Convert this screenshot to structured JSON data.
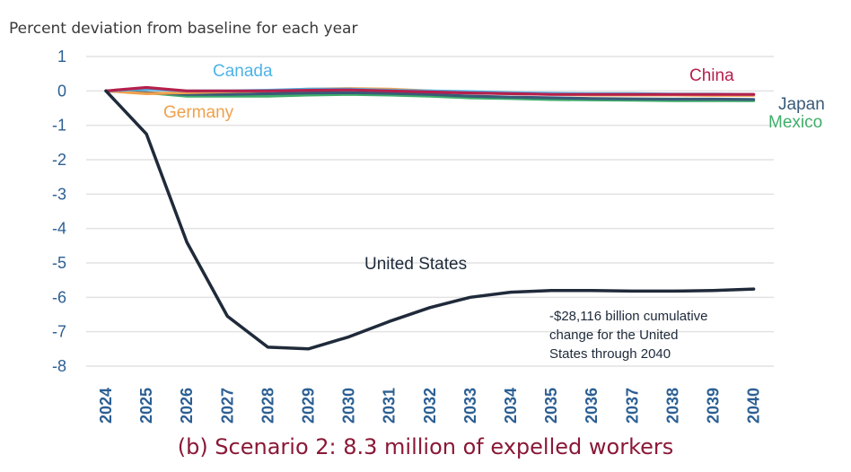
{
  "chart_data": {
    "type": "line",
    "title": "Percent deviation from baseline for each year",
    "x": [
      2024,
      2025,
      2026,
      2027,
      2028,
      2029,
      2030,
      2031,
      2032,
      2033,
      2034,
      2035,
      2036,
      2037,
      2038,
      2039,
      2040
    ],
    "ylim": [
      -8,
      1
    ],
    "yticks": [
      1,
      0,
      -1,
      -2,
      -3,
      -4,
      -5,
      -6,
      -7,
      -8
    ],
    "grid": true,
    "series": [
      {
        "name": "United States",
        "color": "#1f2a3a",
        "values": [
          0,
          -1.25,
          -4.4,
          -6.55,
          -7.45,
          -7.5,
          -7.15,
          -6.7,
          -6.3,
          -6.0,
          -5.85,
          -5.8,
          -5.8,
          -5.82,
          -5.82,
          -5.8,
          -5.76
        ]
      },
      {
        "name": "Canada",
        "color": "#4fb3e6",
        "values": [
          0,
          0.05,
          0.0,
          0.0,
          0.02,
          0.05,
          0.05,
          0.02,
          0.0,
          -0.02,
          -0.05,
          -0.07,
          -0.08,
          -0.08,
          -0.09,
          -0.09,
          -0.1
        ]
      },
      {
        "name": "China",
        "color": "#b5204d",
        "values": [
          0,
          0.1,
          0.0,
          0.0,
          0.0,
          0.02,
          0.03,
          0.0,
          -0.03,
          -0.06,
          -0.08,
          -0.1,
          -0.1,
          -0.1,
          -0.1,
          -0.1,
          -0.1
        ]
      },
      {
        "name": "Germany",
        "color": "#f0a04b",
        "values": [
          0,
          -0.08,
          -0.05,
          -0.02,
          0.0,
          0.05,
          0.07,
          0.05,
          0.0,
          -0.05,
          -0.08,
          -0.1,
          -0.12,
          -0.12,
          -0.12,
          -0.13,
          -0.13
        ]
      },
      {
        "name": "Japan",
        "color": "#3a5a78",
        "values": [
          0,
          -0.05,
          -0.1,
          -0.1,
          -0.08,
          -0.06,
          -0.05,
          -0.07,
          -0.1,
          -0.15,
          -0.18,
          -0.2,
          -0.22,
          -0.23,
          -0.24,
          -0.24,
          -0.25
        ]
      },
      {
        "name": "Mexico",
        "color": "#3fae6a",
        "values": [
          0,
          -0.05,
          -0.15,
          -0.15,
          -0.15,
          -0.12,
          -0.1,
          -0.12,
          -0.15,
          -0.2,
          -0.22,
          -0.25,
          -0.26,
          -0.27,
          -0.28,
          -0.28,
          -0.28
        ]
      }
    ],
    "annotation": [
      "-$28,116 billion cumulative",
      "change for the United",
      "States through 2040"
    ]
  },
  "caption": "(b) Scenario 2: 8.3 million of expelled workers"
}
